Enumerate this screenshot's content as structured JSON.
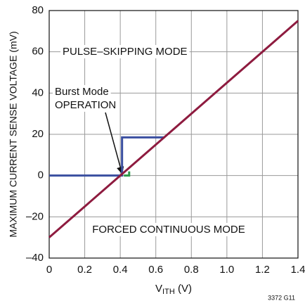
{
  "chart_data": {
    "type": "line",
    "y_label": "MAXIMUM CURRENT SENSE VOLTAGE (mV)",
    "x_label": {
      "main": "V",
      "sub": "ITH",
      "unit": " (V)"
    },
    "xlim": [
      0,
      1.4
    ],
    "ylim": [
      -40,
      80
    ],
    "xticks": [
      0,
      0.2,
      0.4,
      0.6,
      0.8,
      {
        "value": 1.0,
        "label": "1.0"
      },
      1.2,
      1.4
    ],
    "yticks": [
      {
        "value": -40,
        "label": "–40"
      },
      {
        "value": -20,
        "label": "–20"
      },
      0,
      20,
      40,
      60,
      80
    ],
    "grid": true,
    "series": [
      {
        "name": "PULSE–SKIPPING MODE",
        "color": "#3a4fa0",
        "x": [
          0,
          0.41,
          0.41,
          0.65
        ],
        "values": [
          0,
          0,
          18.5,
          18.5
        ]
      },
      {
        "name": "Burst Mode OPERATION",
        "color": "#2e9a4a",
        "x": [
          0.42,
          0.45,
          0.45
        ],
        "values": [
          0,
          0,
          2
        ]
      },
      {
        "name": "FORCED CONTINUOUS MODE",
        "color": "#8e1b3f",
        "x": [
          0,
          1.4
        ],
        "values": [
          -30,
          75
        ]
      }
    ],
    "annotations": {
      "pulse": "PULSE–SKIPPING MODE",
      "burst": [
        "Burst Mode",
        "OPERATION"
      ],
      "forced": "FORCED CONTINUOUS MODE",
      "figure_id": "3372 G11"
    }
  }
}
